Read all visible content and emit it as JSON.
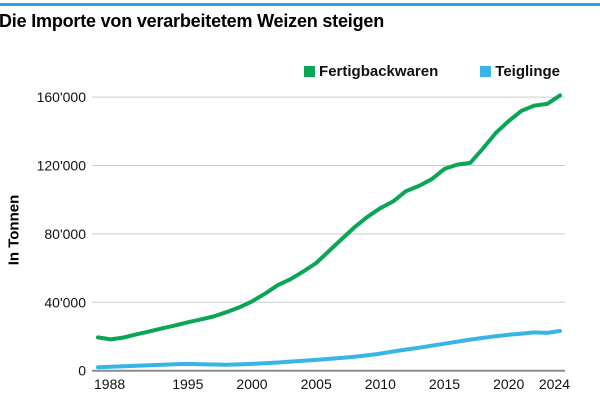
{
  "page": {
    "title": "Die Importe von verarbeitetem Weizen steigen",
    "top_border_color": "#2ea3e2"
  },
  "chart_data": {
    "type": "line",
    "title": "Die Importe von verarbeitetem Weizen steigen",
    "ylabel": "In Tonnen",
    "xlabel": "",
    "ylim": [
      0,
      160000
    ],
    "xlim": [
      1988,
      2024
    ],
    "grid": true,
    "legend_position": "top-right",
    "colors": {
      "grid": "#cbcbcb",
      "axis": "#8c8c8c",
      "text": "#111111"
    },
    "x": [
      1988,
      1989,
      1990,
      1991,
      1992,
      1993,
      1994,
      1995,
      1996,
      1997,
      1998,
      1999,
      2000,
      2001,
      2002,
      2003,
      2004,
      2005,
      2006,
      2007,
      2008,
      2009,
      2010,
      2011,
      2012,
      2013,
      2014,
      2015,
      2016,
      2017,
      2018,
      2019,
      2020,
      2021,
      2022,
      2023,
      2024
    ],
    "series": [
      {
        "name": "Fertigbackwaren",
        "color": "#0ba655",
        "values": [
          19500,
          18300,
          19400,
          21300,
          23000,
          24800,
          26500,
          28300,
          30000,
          31700,
          34200,
          37000,
          40500,
          45000,
          50000,
          53500,
          58000,
          63000,
          70000,
          77000,
          84000,
          90000,
          95000,
          99000,
          105000,
          108000,
          112000,
          118000,
          120500,
          121500,
          130000,
          139000,
          146000,
          152000,
          155000,
          156000,
          161000
        ]
      },
      {
        "name": "Teiglinge",
        "color": "#38b5e8",
        "values": [
          2000,
          2300,
          2600,
          2900,
          3200,
          3500,
          3800,
          4000,
          3800,
          3600,
          3500,
          3700,
          4000,
          4400,
          4800,
          5300,
          5800,
          6300,
          6900,
          7500,
          8200,
          9000,
          10000,
          11200,
          12400,
          13400,
          14600,
          15800,
          17000,
          18200,
          19200,
          20200,
          21000,
          21700,
          22400,
          22100,
          23200
        ]
      }
    ],
    "yticks": [
      {
        "value": 0,
        "label": "0"
      },
      {
        "value": 40000,
        "label": "40'000"
      },
      {
        "value": 80000,
        "label": "80'000"
      },
      {
        "value": 120000,
        "label": "120'000"
      },
      {
        "value": 160000,
        "label": "160'000"
      }
    ],
    "xticks": [
      {
        "value": 1988,
        "label": "1988"
      },
      {
        "value": 1995,
        "label": "1995"
      },
      {
        "value": 2000,
        "label": "2000"
      },
      {
        "value": 2005,
        "label": "2005"
      },
      {
        "value": 2010,
        "label": "2010"
      },
      {
        "value": 2015,
        "label": "2015"
      },
      {
        "value": 2020,
        "label": "2020"
      },
      {
        "value": 2024,
        "label": "2024"
      }
    ]
  }
}
